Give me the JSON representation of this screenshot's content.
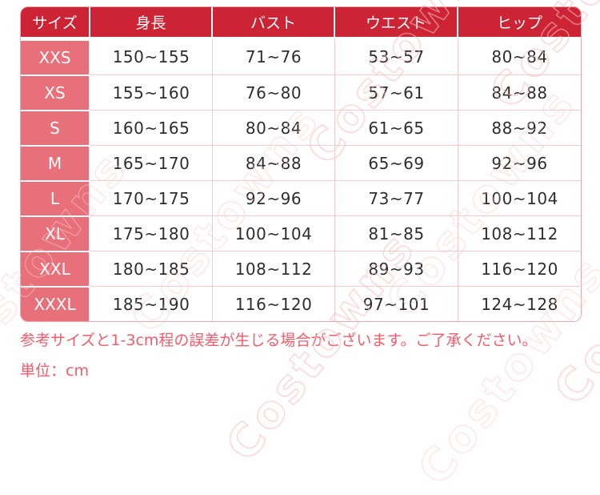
{
  "watermark": {
    "text": "Costowns"
  },
  "table": {
    "columns": [
      "サイズ",
      "身長",
      "バスト",
      "ウエスト",
      "ヒップ"
    ],
    "rows": [
      [
        "XXS",
        "150~155",
        "71~76",
        "53~57",
        "80~84"
      ],
      [
        "XS",
        "155~160",
        "76~80",
        "57~61",
        "84~88"
      ],
      [
        "S",
        "160~165",
        "80~84",
        "61~65",
        "88~92"
      ],
      [
        "M",
        "165~170",
        "84~88",
        "65~69",
        "92~96"
      ],
      [
        "L",
        "170~175",
        "92~96",
        "73~77",
        "100~104"
      ],
      [
        "XL",
        "175~180",
        "100~104",
        "81~85",
        "108~112"
      ],
      [
        "XXL",
        "180~185",
        "108~112",
        "89~93",
        "116~120"
      ],
      [
        "XXXL",
        "185~190",
        "116~120",
        "97~101",
        "124~128"
      ]
    ]
  },
  "notes": {
    "line1": "参考サイズと1-3cm程の誤差が生じる場合がございます。ご了承ください。",
    "line2": "単位：cm"
  },
  "colors": {
    "header_bg": "#cc2434",
    "size_column_bg": "#e8707b",
    "grid_line": "#f4cbcb",
    "outer_border": "#efa9af",
    "note_text": "#ef5e6c",
    "data_text": "#2e2e2e"
  },
  "chart_data": {
    "type": "table",
    "title": "",
    "columns": [
      "サイズ",
      "身長",
      "バスト",
      "ウエスト",
      "ヒップ"
    ],
    "unit": "cm",
    "rows": [
      {
        "size": "XXS",
        "height": "150~155",
        "bust": "71~76",
        "waist": "53~57",
        "hip": "80~84"
      },
      {
        "size": "XS",
        "height": "155~160",
        "bust": "76~80",
        "waist": "57~61",
        "hip": "84~88"
      },
      {
        "size": "S",
        "height": "160~165",
        "bust": "80~84",
        "waist": "61~65",
        "hip": "88~92"
      },
      {
        "size": "M",
        "height": "165~170",
        "bust": "84~88",
        "waist": "65~69",
        "hip": "92~96"
      },
      {
        "size": "L",
        "height": "170~175",
        "bust": "92~96",
        "waist": "73~77",
        "hip": "100~104"
      },
      {
        "size": "XL",
        "height": "175~180",
        "bust": "100~104",
        "waist": "81~85",
        "hip": "108~112"
      },
      {
        "size": "XXL",
        "height": "180~185",
        "bust": "108~112",
        "waist": "89~93",
        "hip": "116~120"
      },
      {
        "size": "XXXL",
        "height": "185~190",
        "bust": "116~120",
        "waist": "97~101",
        "hip": "124~128"
      }
    ]
  }
}
